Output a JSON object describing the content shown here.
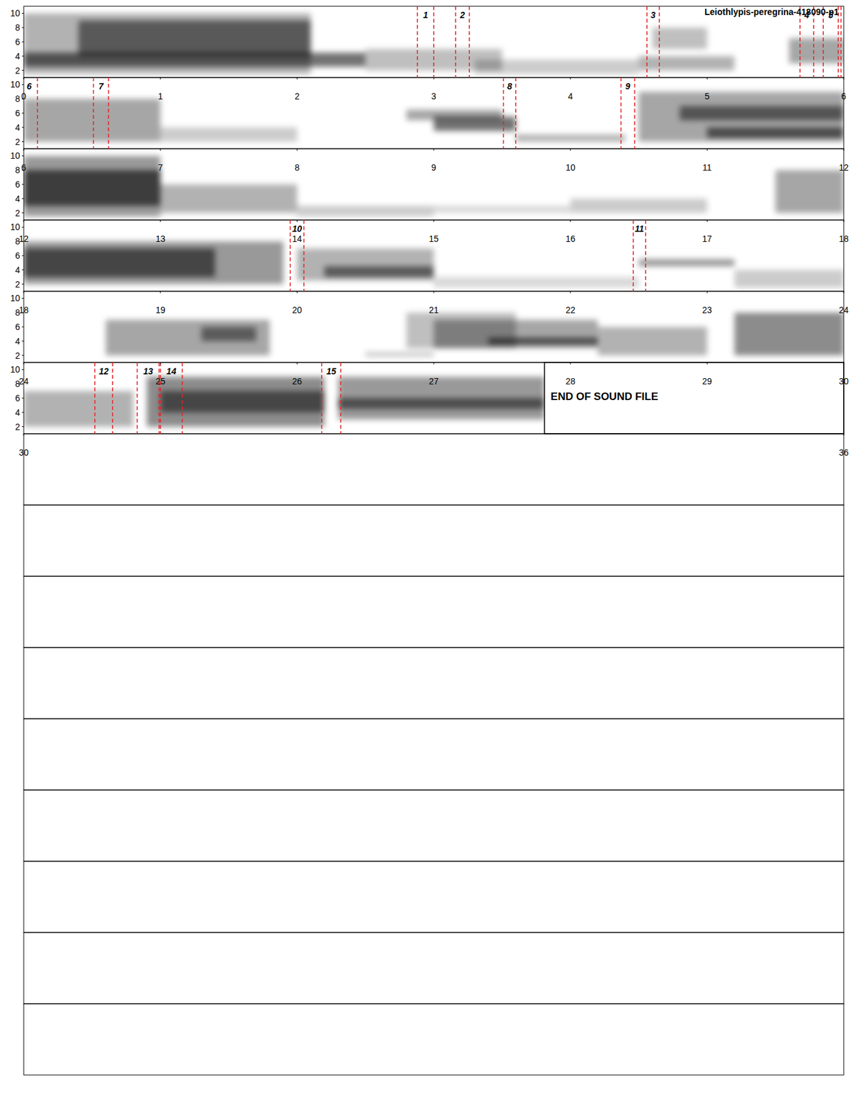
{
  "chart_data": {
    "type": "spectrogram",
    "title": "Leiothlypis-peregrina-418090-p1",
    "ylim": [
      1,
      11
    ],
    "yticks": [
      2,
      4,
      6,
      8,
      10
    ],
    "end_time": 33.81,
    "end_label": "END OF SOUND FILE",
    "panels": [
      {
        "xlim": [
          0,
          6
        ],
        "xticks": [
          0,
          1,
          2,
          3,
          4,
          5,
          6
        ]
      },
      {
        "xlim": [
          6,
          12
        ],
        "xticks": [
          6,
          7,
          8,
          9,
          10,
          11,
          12
        ]
      },
      {
        "xlim": [
          12,
          18
        ],
        "xticks": [
          12,
          13,
          14,
          15,
          16,
          17,
          18
        ]
      },
      {
        "xlim": [
          18,
          24
        ],
        "xticks": [
          18,
          19,
          20,
          21,
          22,
          23,
          24
        ]
      },
      {
        "xlim": [
          24,
          30
        ],
        "xticks": [
          24,
          25,
          26,
          27,
          28,
          29,
          30
        ]
      },
      {
        "xlim": [
          30,
          36
        ],
        "xticks": [
          30,
          36
        ]
      }
    ],
    "empty_panels": 9,
    "selections": {
      "color": "#e3262a",
      "line_style": "dashed",
      "items": [
        {
          "label": "1",
          "start": 2.88,
          "end": 3.0
        },
        {
          "label": "2",
          "start": 3.16,
          "end": 3.26
        },
        {
          "label": "3",
          "start": 4.56,
          "end": 4.65
        },
        {
          "label": "4",
          "start": 5.68,
          "end": 5.78
        },
        {
          "label": "5",
          "start": 5.85,
          "end": 5.96
        },
        {
          "label": "6",
          "start": 5.98,
          "end": 6.1
        },
        {
          "label": "7",
          "start": 6.51,
          "end": 6.62
        },
        {
          "label": "8",
          "start": 9.51,
          "end": 9.6
        },
        {
          "label": "9",
          "start": 10.37,
          "end": 10.47
        },
        {
          "label": "10",
          "start": 19.95,
          "end": 20.05
        },
        {
          "label": "11",
          "start": 22.46,
          "end": 22.55
        },
        {
          "label": "12",
          "start": 30.52,
          "end": 30.65
        },
        {
          "label": "13",
          "start": 30.83,
          "end": 30.99
        },
        {
          "label": "14",
          "start": 31.0,
          "end": 31.16
        },
        {
          "label": "15",
          "start": 32.18,
          "end": 32.32
        }
      ]
    },
    "bands": {
      "color": "#000000",
      "items": [
        [
          0.0,
          2.1,
          1.5,
          10,
          0.3
        ],
        [
          0.4,
          2.1,
          4,
          9,
          0.5
        ],
        [
          0.0,
          2.5,
          2.5,
          4.5,
          0.55
        ],
        [
          2.5,
          3.5,
          2,
          5,
          0.25
        ],
        [
          3.3,
          4.5,
          1.5,
          3.5,
          0.2
        ],
        [
          4.5,
          5.2,
          2,
          4,
          0.3
        ],
        [
          4.6,
          5.0,
          5,
          8,
          0.25
        ],
        [
          5.6,
          6.0,
          3,
          6.5,
          0.35
        ],
        [
          6.0,
          7.0,
          2,
          8,
          0.35
        ],
        [
          7.0,
          8.0,
          2,
          4,
          0.2
        ],
        [
          8.8,
          9.5,
          5,
          6.5,
          0.35
        ],
        [
          9.0,
          9.6,
          3.5,
          5.5,
          0.55
        ],
        [
          9.6,
          10.4,
          2,
          3,
          0.3
        ],
        [
          10.5,
          12.0,
          2,
          9,
          0.35
        ],
        [
          11.0,
          12.0,
          2.5,
          4,
          0.55
        ],
        [
          10.8,
          12.0,
          5,
          7,
          0.5
        ],
        [
          12.0,
          13.0,
          1.5,
          10,
          0.4
        ],
        [
          12.0,
          13.0,
          3,
          8,
          0.6
        ],
        [
          13.0,
          14.0,
          2,
          6,
          0.3
        ],
        [
          14.0,
          15.0,
          1.5,
          3,
          0.2
        ],
        [
          15.0,
          16.0,
          2,
          3,
          0.15
        ],
        [
          16.0,
          17.0,
          2,
          4,
          0.2
        ],
        [
          17.5,
          18.0,
          2,
          8,
          0.35
        ],
        [
          18.0,
          19.9,
          2,
          8,
          0.4
        ],
        [
          18.0,
          19.4,
          3,
          7,
          0.55
        ],
        [
          20.0,
          21.0,
          2.5,
          7,
          0.3
        ],
        [
          20.2,
          21.0,
          3,
          4.5,
          0.5
        ],
        [
          21.0,
          22.5,
          1.5,
          3,
          0.15
        ],
        [
          22.5,
          23.2,
          4.5,
          5.5,
          0.4
        ],
        [
          23.2,
          24.0,
          1.5,
          4,
          0.2
        ],
        [
          24.6,
          25.8,
          2,
          7,
          0.35
        ],
        [
          25.3,
          25.7,
          4,
          6,
          0.45
        ],
        [
          26.5,
          27.0,
          1.8,
          2.5,
          0.2
        ],
        [
          26.8,
          27.6,
          3,
          8,
          0.25
        ],
        [
          27.0,
          28.2,
          3,
          7,
          0.35
        ],
        [
          27.4,
          28.2,
          3.5,
          4.5,
          0.55
        ],
        [
          28.2,
          29.0,
          2,
          6,
          0.3
        ],
        [
          29.2,
          30.0,
          2,
          8,
          0.45
        ],
        [
          30.0,
          30.8,
          2,
          7,
          0.3
        ],
        [
          30.9,
          32.2,
          2,
          9,
          0.45
        ],
        [
          31.0,
          32.2,
          4,
          7,
          0.5
        ],
        [
          32.3,
          33.81,
          3,
          9,
          0.4
        ],
        [
          32.3,
          33.81,
          4.5,
          6,
          0.5
        ]
      ]
    }
  }
}
